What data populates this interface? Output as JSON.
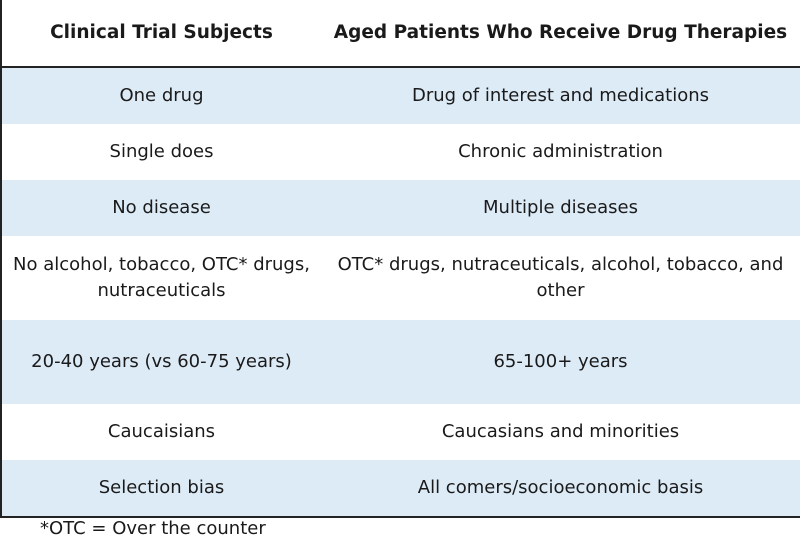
{
  "table": {
    "headers": [
      "Clinical Trial Subjects",
      "Aged Patients Who Receive Drug Therapies"
    ],
    "rows": [
      [
        "One drug",
        "Drug of interest and medications"
      ],
      [
        "Single does",
        "Chronic administration"
      ],
      [
        "No disease",
        "Multiple diseases"
      ],
      [
        "No alcohol, tobacco, OTC* drugs, nutraceuticals",
        "OTC* drugs, nutraceuticals, alcohol, tobacco, and other"
      ],
      [
        "20-40 years (vs 60-75 years)",
        "65-100+ years"
      ],
      [
        "Caucaisians",
        "Caucasians and minorities"
      ],
      [
        "Selection bias",
        "All comers/socioeconomic basis"
      ]
    ]
  },
  "footnote": "*OTC = Over the counter",
  "colors": {
    "row_shade": "#ddebf7",
    "border": "#222222"
  }
}
